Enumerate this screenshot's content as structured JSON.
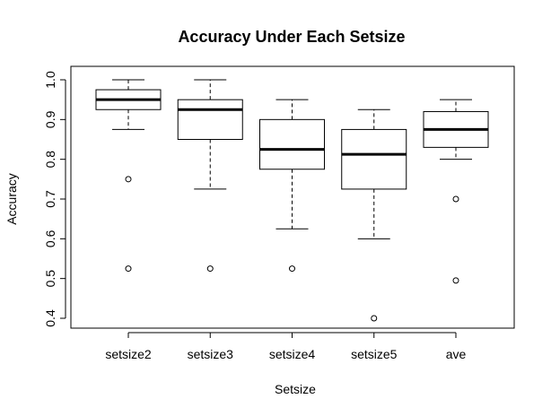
{
  "chart_data": {
    "type": "boxplot",
    "title": "Accuracy Under Each Setsize",
    "xlabel": "Setsize",
    "ylabel": "Accuracy",
    "ylim": [
      0.4,
      1.0
    ],
    "yticks": [
      "0.4",
      "0.5",
      "0.6",
      "0.7",
      "0.8",
      "0.9",
      "1.0"
    ],
    "categories": [
      "setsize2",
      "setsize3",
      "setsize4",
      "setsize5",
      "ave"
    ],
    "grid": false,
    "boxes": [
      {
        "category": "setsize2",
        "whisker_low": 0.875,
        "q1": 0.925,
        "median": 0.95,
        "q3": 0.975,
        "whisker_high": 1.0,
        "outliers": [
          0.75,
          0.525
        ]
      },
      {
        "category": "setsize3",
        "whisker_low": 0.725,
        "q1": 0.85,
        "median": 0.925,
        "q3": 0.95,
        "whisker_high": 1.0,
        "outliers": [
          0.525
        ]
      },
      {
        "category": "setsize4",
        "whisker_low": 0.625,
        "q1": 0.775,
        "median": 0.825,
        "q3": 0.9,
        "whisker_high": 0.95,
        "outliers": [
          0.525
        ]
      },
      {
        "category": "setsize5",
        "whisker_low": 0.6,
        "q1": 0.725,
        "median": 0.8125,
        "q3": 0.875,
        "whisker_high": 0.925,
        "outliers": [
          0.4
        ]
      },
      {
        "category": "ave",
        "whisker_low": 0.8,
        "q1": 0.83,
        "median": 0.875,
        "q3": 0.92,
        "whisker_high": 0.95,
        "outliers": [
          0.7,
          0.495
        ]
      }
    ]
  }
}
